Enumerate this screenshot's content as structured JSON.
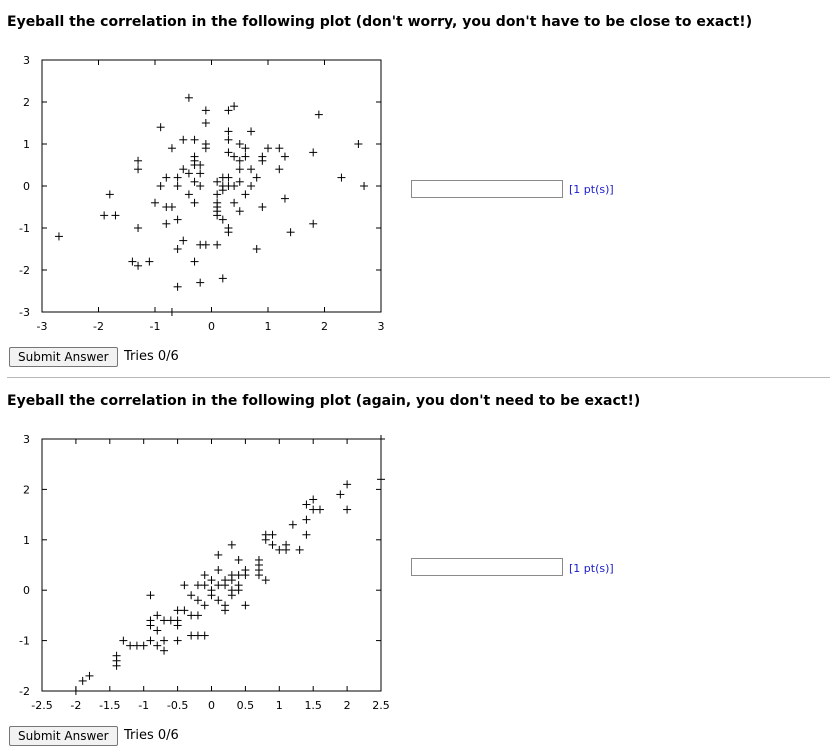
{
  "questions": [
    {
      "title": "Eyeball the correlation in the following plot (don't worry, you don't have to be close to exact!)",
      "answer_value": "",
      "points_label": "[1 pt(s)]",
      "submit_label": "Submit Answer",
      "tries_label": "Tries 0/6"
    },
    {
      "title": "Eyeball the correlation in the following plot (again, you don't need to be exact!)",
      "answer_value": "",
      "points_label": "[1 pt(s)]",
      "submit_label": "Submit Answer",
      "tries_label": "Tries 0/6"
    }
  ],
  "chart_data": [
    {
      "type": "scatter",
      "title": "",
      "xlabel": "",
      "ylabel": "",
      "xlim": [
        -3,
        3
      ],
      "ylim": [
        -3,
        3
      ],
      "xticks": [
        -3,
        -2,
        -1,
        0,
        1,
        2,
        3
      ],
      "yticks": [
        -3,
        -2,
        -1,
        0,
        1,
        2,
        3
      ],
      "grid": false,
      "marker": "plus",
      "points": [
        [
          -2.7,
          -1.2
        ],
        [
          -1.9,
          -0.7
        ],
        [
          -1.8,
          -0.2
        ],
        [
          -1.7,
          -0.7
        ],
        [
          -1.4,
          -1.8
        ],
        [
          -1.3,
          -1.9
        ],
        [
          -1.3,
          -1.0
        ],
        [
          -1.3,
          0.4
        ],
        [
          -1.3,
          0.6
        ],
        [
          -1.1,
          -1.8
        ],
        [
          -1.0,
          -0.4
        ],
        [
          -0.9,
          1.4
        ],
        [
          -0.9,
          0.0
        ],
        [
          -0.8,
          0.2
        ],
        [
          -0.8,
          -0.5
        ],
        [
          -0.8,
          -0.9
        ],
        [
          -0.7,
          0.9
        ],
        [
          -0.7,
          -0.5
        ],
        [
          -0.6,
          0.2
        ],
        [
          -0.6,
          0.0
        ],
        [
          -0.6,
          -0.8
        ],
        [
          -0.6,
          -1.5
        ],
        [
          -0.6,
          -2.4
        ],
        [
          -0.5,
          1.1
        ],
        [
          -0.5,
          0.4
        ],
        [
          -0.5,
          -1.3
        ],
        [
          -0.4,
          0.3
        ],
        [
          -0.4,
          -0.2
        ],
        [
          -0.4,
          2.1
        ],
        [
          -0.3,
          1.1
        ],
        [
          -0.3,
          0.7
        ],
        [
          -0.3,
          0.6
        ],
        [
          -0.3,
          0.5
        ],
        [
          -0.3,
          0.1
        ],
        [
          -0.3,
          -0.4
        ],
        [
          -0.3,
          -1.8
        ],
        [
          -0.2,
          0.5
        ],
        [
          -0.2,
          0.3
        ],
        [
          -0.2,
          -0.0
        ],
        [
          -0.2,
          -1.4
        ],
        [
          -0.2,
          -2.3
        ],
        [
          -0.1,
          1.8
        ],
        [
          -0.1,
          1.5
        ],
        [
          -0.1,
          1.0
        ],
        [
          -0.1,
          0.9
        ],
        [
          -0.1,
          -1.4
        ],
        [
          0.1,
          0.1
        ],
        [
          0.1,
          -0.2
        ],
        [
          0.1,
          -0.4
        ],
        [
          0.1,
          -0.5
        ],
        [
          0.1,
          -0.6
        ],
        [
          0.1,
          -0.7
        ],
        [
          0.1,
          -1.4
        ],
        [
          0.2,
          0.2
        ],
        [
          0.2,
          0.0
        ],
        [
          0.2,
          -0.1
        ],
        [
          0.2,
          -0.8
        ],
        [
          0.2,
          -2.2
        ],
        [
          0.3,
          1.8
        ],
        [
          0.3,
          1.3
        ],
        [
          0.3,
          1.1
        ],
        [
          0.3,
          0.8
        ],
        [
          0.3,
          0.2
        ],
        [
          0.3,
          -0.0
        ],
        [
          0.3,
          -1.0
        ],
        [
          0.3,
          -1.1
        ],
        [
          0.4,
          1.9
        ],
        [
          0.4,
          0.7
        ],
        [
          0.4,
          0.0
        ],
        [
          0.4,
          -0.4
        ],
        [
          0.5,
          1.0
        ],
        [
          0.5,
          0.6
        ],
        [
          0.5,
          0.4
        ],
        [
          0.5,
          0.1
        ],
        [
          0.5,
          -0.6
        ],
        [
          0.6,
          0.9
        ],
        [
          0.6,
          0.7
        ],
        [
          0.6,
          -0.2
        ],
        [
          0.7,
          1.3
        ],
        [
          0.7,
          0.4
        ],
        [
          0.7,
          0.0
        ],
        [
          0.8,
          0.2
        ],
        [
          0.8,
          -1.5
        ],
        [
          0.9,
          0.7
        ],
        [
          0.9,
          0.6
        ],
        [
          0.9,
          -0.5
        ],
        [
          1.0,
          0.9
        ],
        [
          1.2,
          0.9
        ],
        [
          1.2,
          0.4
        ],
        [
          1.3,
          0.7
        ],
        [
          1.3,
          -0.3
        ],
        [
          1.4,
          -1.1
        ],
        [
          1.8,
          0.8
        ],
        [
          1.8,
          -0.9
        ],
        [
          1.9,
          1.7
        ],
        [
          2.3,
          0.2
        ],
        [
          2.6,
          1.0
        ],
        [
          2.7,
          0.0
        ],
        [
          -0.7,
          -3.0
        ]
      ]
    },
    {
      "type": "scatter",
      "title": "",
      "xlabel": "",
      "ylabel": "",
      "xlim": [
        -2.5,
        2.5
      ],
      "ylim": [
        -2,
        3
      ],
      "xticks": [
        -2.5,
        -2,
        -1.5,
        -1,
        -0.5,
        0,
        0.5,
        1,
        1.5,
        2,
        2.5
      ],
      "yticks": [
        -2,
        -1,
        0,
        1,
        2,
        3
      ],
      "grid": false,
      "marker": "plus",
      "points": [
        [
          -2.0,
          -2.0
        ],
        [
          -1.9,
          -1.8
        ],
        [
          -1.8,
          -1.7
        ],
        [
          -1.4,
          -1.3
        ],
        [
          -1.4,
          -1.4
        ],
        [
          -1.4,
          -1.5
        ],
        [
          -1.3,
          -1.0
        ],
        [
          -1.2,
          -1.1
        ],
        [
          -1.1,
          -1.1
        ],
        [
          -1.0,
          -1.1
        ],
        [
          -0.9,
          -0.1
        ],
        [
          -0.9,
          -0.6
        ],
        [
          -0.9,
          -0.7
        ],
        [
          -0.9,
          -1.0
        ],
        [
          -0.8,
          -0.5
        ],
        [
          -0.8,
          -0.8
        ],
        [
          -0.8,
          -1.1
        ],
        [
          -0.7,
          -0.6
        ],
        [
          -0.7,
          -1.0
        ],
        [
          -0.7,
          -1.2
        ],
        [
          -0.6,
          -0.6
        ],
        [
          -0.5,
          -0.6
        ],
        [
          -0.5,
          -0.7
        ],
        [
          -0.5,
          -1.0
        ],
        [
          -0.5,
          -0.4
        ],
        [
          -0.4,
          0.1
        ],
        [
          -0.4,
          -0.4
        ],
        [
          -0.3,
          -0.1
        ],
        [
          -0.3,
          -0.5
        ],
        [
          -0.3,
          -0.9
        ],
        [
          -0.2,
          0.1
        ],
        [
          -0.2,
          -0.2
        ],
        [
          -0.2,
          -0.5
        ],
        [
          -0.2,
          -0.9
        ],
        [
          -0.1,
          0.3
        ],
        [
          -0.1,
          0.1
        ],
        [
          -0.1,
          -0.3
        ],
        [
          -0.1,
          -0.9
        ],
        [
          0.0,
          0.2
        ],
        [
          0.0,
          0.0
        ],
        [
          0.0,
          -0.1
        ],
        [
          0.1,
          0.7
        ],
        [
          0.1,
          0.4
        ],
        [
          0.1,
          0.1
        ],
        [
          0.1,
          -0.2
        ],
        [
          0.2,
          0.2
        ],
        [
          0.2,
          0.1
        ],
        [
          0.2,
          -0.3
        ],
        [
          0.2,
          -0.4
        ],
        [
          0.3,
          0.9
        ],
        [
          0.3,
          0.3
        ],
        [
          0.3,
          0.2
        ],
        [
          0.3,
          0.0
        ],
        [
          0.3,
          -0.1
        ],
        [
          0.4,
          0.6
        ],
        [
          0.4,
          0.3
        ],
        [
          0.4,
          0.1
        ],
        [
          0.4,
          0.0
        ],
        [
          0.5,
          0.4
        ],
        [
          0.5,
          0.3
        ],
        [
          0.5,
          -0.3
        ],
        [
          0.7,
          0.6
        ],
        [
          0.7,
          0.5
        ],
        [
          0.7,
          0.4
        ],
        [
          0.7,
          0.3
        ],
        [
          0.8,
          0.2
        ],
        [
          0.8,
          1.0
        ],
        [
          0.8,
          1.1
        ],
        [
          0.9,
          1.1
        ],
        [
          0.9,
          0.9
        ],
        [
          1.0,
          0.8
        ],
        [
          1.1,
          0.9
        ],
        [
          1.1,
          0.8
        ],
        [
          1.2,
          1.3
        ],
        [
          1.3,
          0.8
        ],
        [
          1.4,
          1.7
        ],
        [
          1.4,
          1.4
        ],
        [
          1.4,
          1.1
        ],
        [
          1.5,
          1.8
        ],
        [
          1.5,
          1.6
        ],
        [
          1.6,
          1.6
        ],
        [
          1.9,
          1.9
        ],
        [
          2.0,
          2.1
        ],
        [
          2.0,
          1.6
        ],
        [
          2.5,
          3.0
        ],
        [
          2.5,
          2.2
        ]
      ]
    }
  ]
}
